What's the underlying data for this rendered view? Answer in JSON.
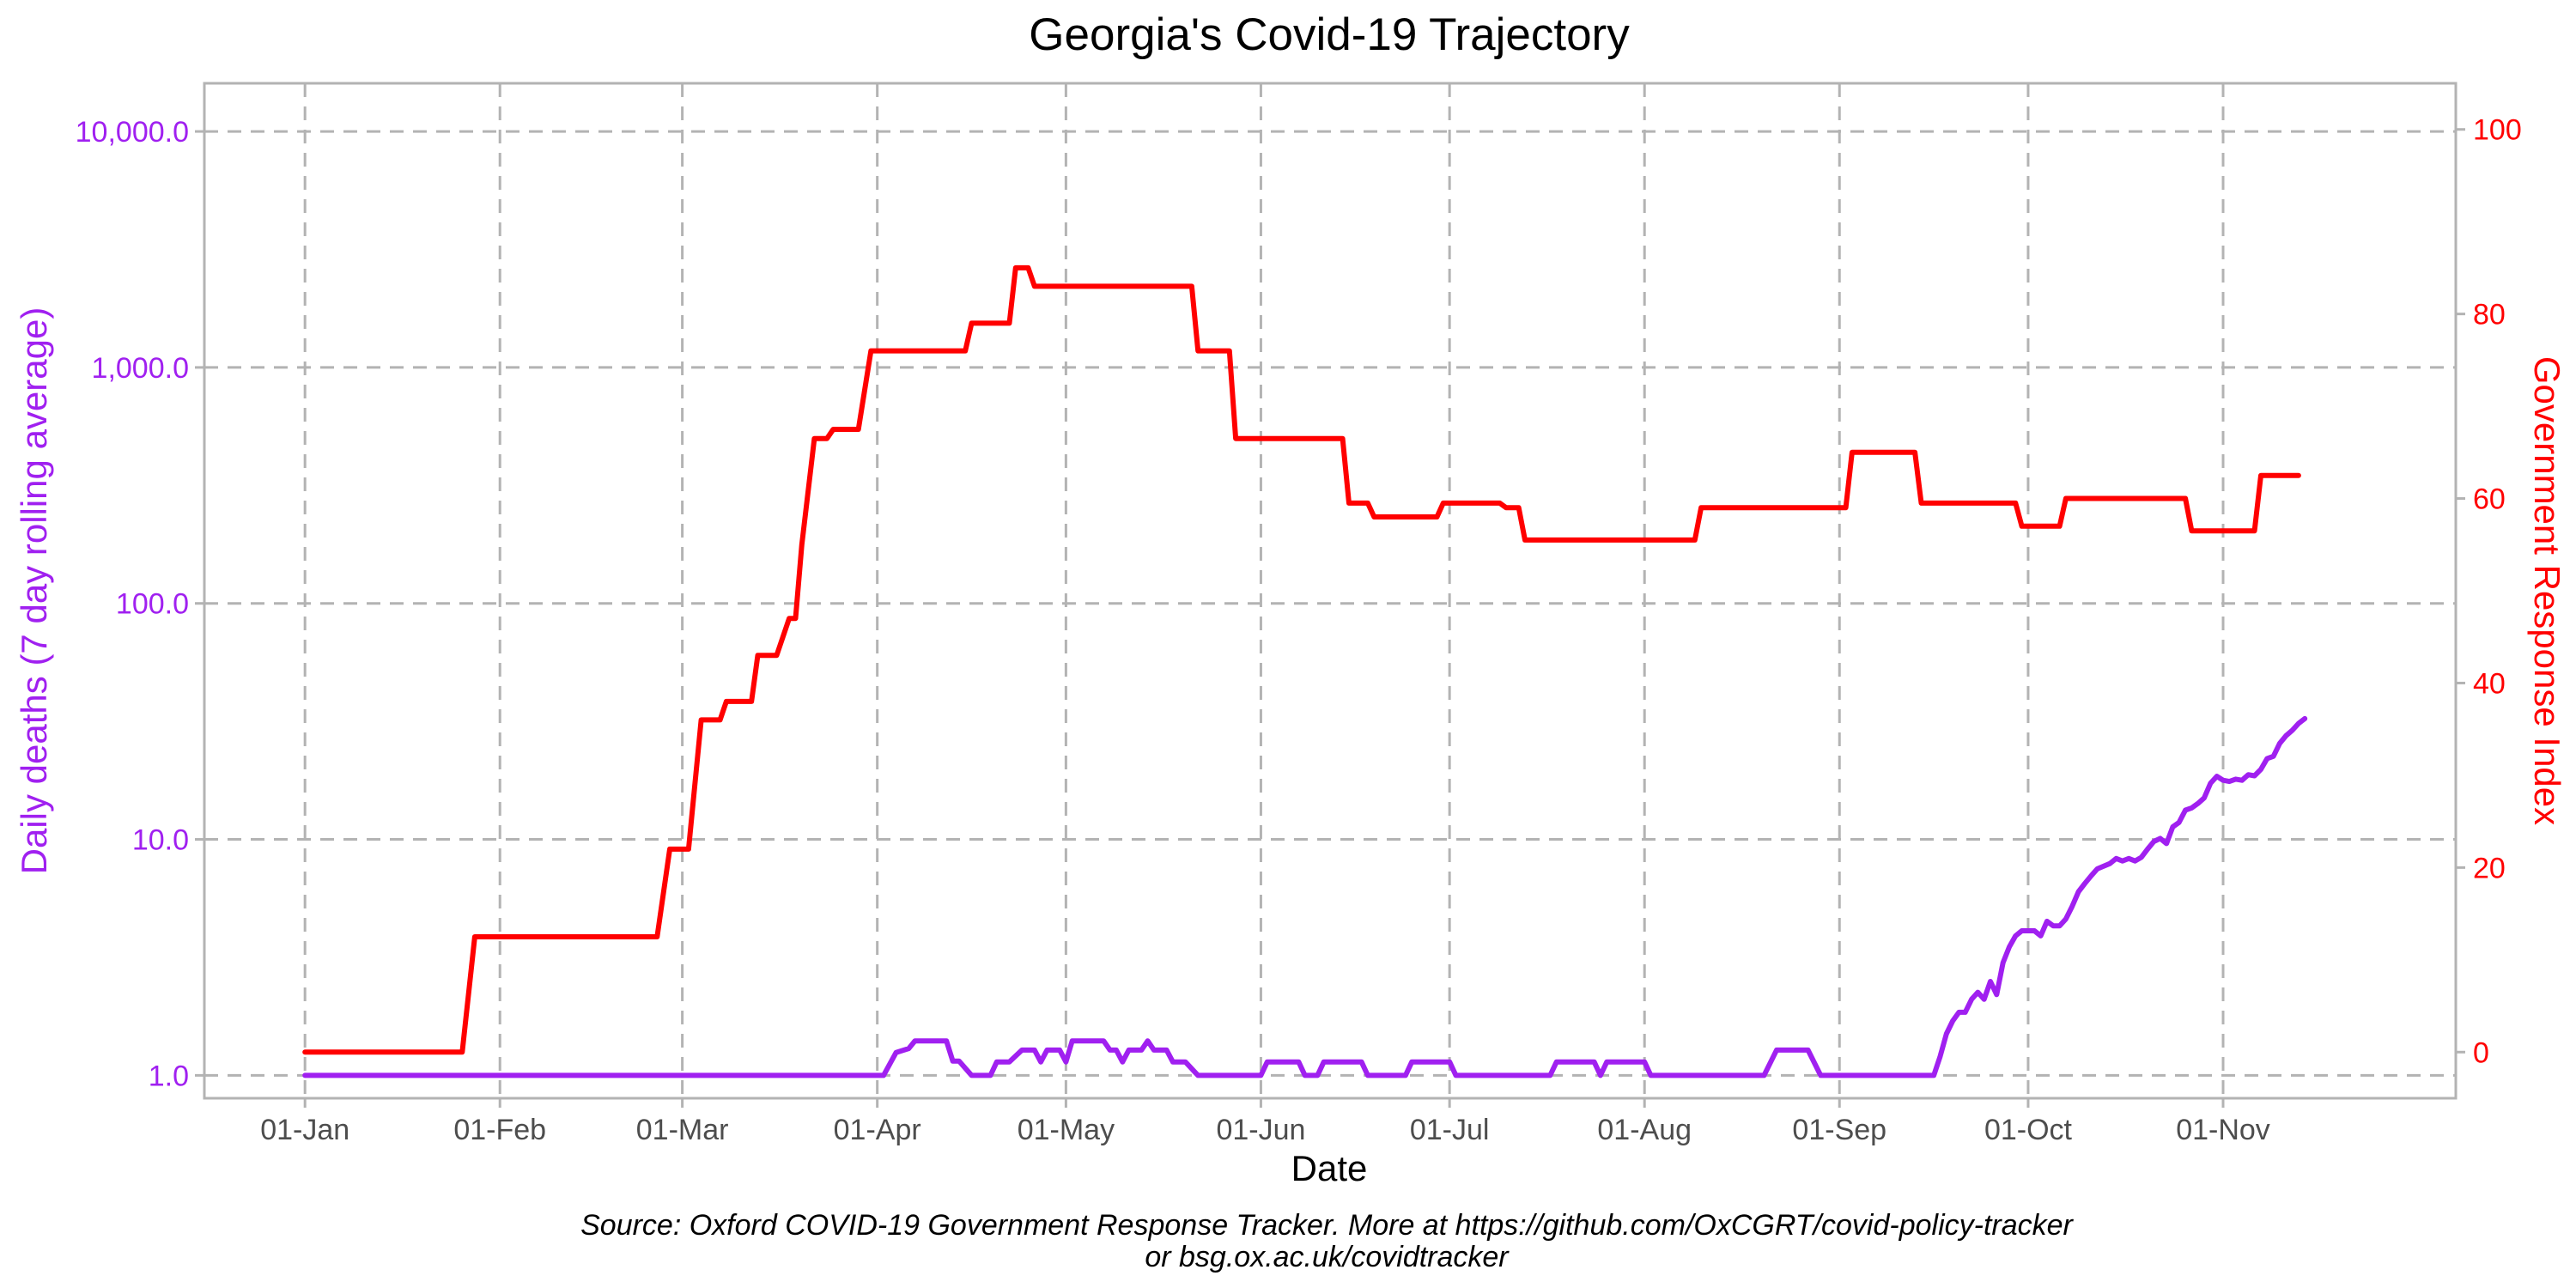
{
  "chart_data": {
    "type": "line",
    "title": "Georgia's Covid-19 Trajectory",
    "xlabel": "Date",
    "ylabel_left": "Daily deaths (7 day rolling average)",
    "ylabel_right": "Government Response Index",
    "caption_line1": "Source: Oxford COVID-19 Government Response Tracker. More at https://github.com/OxCGRT/covid-policy-tracker",
    "caption_line2": "or bsg.ox.ac.uk/covidtracker",
    "x_ticks": [
      {
        "label": "01-Jan",
        "date": "2020-01-01"
      },
      {
        "label": "01-Feb",
        "date": "2020-02-01"
      },
      {
        "label": "01-Mar",
        "date": "2020-03-01"
      },
      {
        "label": "01-Apr",
        "date": "2020-04-01"
      },
      {
        "label": "01-May",
        "date": "2020-05-01"
      },
      {
        "label": "01-Jun",
        "date": "2020-06-01"
      },
      {
        "label": "01-Jul",
        "date": "2020-07-01"
      },
      {
        "label": "01-Aug",
        "date": "2020-08-01"
      },
      {
        "label": "01-Sep",
        "date": "2020-09-01"
      },
      {
        "label": "01-Oct",
        "date": "2020-10-01"
      },
      {
        "label": "01-Nov",
        "date": "2020-11-01"
      }
    ],
    "xlim": [
      "2019-12-16",
      "2020-12-08"
    ],
    "y_left": {
      "scale": "log10",
      "ylim": [
        0.8,
        16000
      ],
      "ticks": [
        {
          "label": "1.0",
          "value": 1
        },
        {
          "label": "10.0",
          "value": 10
        },
        {
          "label": "100.0",
          "value": 100
        },
        {
          "label": "1,000.0",
          "value": 1000
        },
        {
          "label": "10,000.0",
          "value": 10000
        }
      ]
    },
    "y_right": {
      "scale": "linear",
      "ylim": [
        -5,
        105
      ],
      "ticks": [
        {
          "label": "0",
          "value": 0
        },
        {
          "label": "20",
          "value": 20
        },
        {
          "label": "40",
          "value": 40
        },
        {
          "label": "60",
          "value": 60
        },
        {
          "label": "80",
          "value": 80
        },
        {
          "label": "100",
          "value": 100
        }
      ]
    },
    "grid": true,
    "series": [
      {
        "name": "Daily deaths (7 day rolling average)",
        "axis": "left",
        "color": "#a020f0",
        "points": [
          [
            "2020-01-01",
            1.0
          ],
          [
            "2020-04-02",
            1.0
          ],
          [
            "2020-04-04",
            1.25
          ],
          [
            "2020-04-06",
            1.3
          ],
          [
            "2020-04-07",
            1.4
          ],
          [
            "2020-04-12",
            1.4
          ],
          [
            "2020-04-13",
            1.15
          ],
          [
            "2020-04-14",
            1.15
          ],
          [
            "2020-04-16",
            1.0
          ],
          [
            "2020-04-19",
            1.0
          ],
          [
            "2020-04-20",
            1.14
          ],
          [
            "2020-04-22",
            1.14
          ],
          [
            "2020-04-24",
            1.28
          ],
          [
            "2020-04-26",
            1.28
          ],
          [
            "2020-04-27",
            1.14
          ],
          [
            "2020-04-28",
            1.28
          ],
          [
            "2020-04-30",
            1.28
          ],
          [
            "2020-05-01",
            1.14
          ],
          [
            "2020-05-02",
            1.4
          ],
          [
            "2020-05-07",
            1.4
          ],
          [
            "2020-05-08",
            1.28
          ],
          [
            "2020-05-09",
            1.28
          ],
          [
            "2020-05-10",
            1.14
          ],
          [
            "2020-05-11",
            1.28
          ],
          [
            "2020-05-13",
            1.28
          ],
          [
            "2020-05-14",
            1.4
          ],
          [
            "2020-05-15",
            1.28
          ],
          [
            "2020-05-17",
            1.28
          ],
          [
            "2020-05-18",
            1.14
          ],
          [
            "2020-05-20",
            1.14
          ],
          [
            "2020-05-22",
            1.0
          ],
          [
            "2020-06-01",
            1.0
          ],
          [
            "2020-06-02",
            1.14
          ],
          [
            "2020-06-07",
            1.14
          ],
          [
            "2020-06-08",
            1.0
          ],
          [
            "2020-06-10",
            1.0
          ],
          [
            "2020-06-11",
            1.14
          ],
          [
            "2020-06-17",
            1.14
          ],
          [
            "2020-06-18",
            1.0
          ],
          [
            "2020-06-24",
            1.0
          ],
          [
            "2020-06-25",
            1.14
          ],
          [
            "2020-07-01",
            1.14
          ],
          [
            "2020-07-02",
            1.0
          ],
          [
            "2020-07-17",
            1.0
          ],
          [
            "2020-07-18",
            1.14
          ],
          [
            "2020-07-24",
            1.14
          ],
          [
            "2020-07-25",
            1.0
          ],
          [
            "2020-07-26",
            1.14
          ],
          [
            "2020-08-01",
            1.14
          ],
          [
            "2020-08-02",
            1.0
          ],
          [
            "2020-08-20",
            1.0
          ],
          [
            "2020-08-22",
            1.28
          ],
          [
            "2020-08-27",
            1.28
          ],
          [
            "2020-08-29",
            1.0
          ],
          [
            "2020-09-16",
            1.0
          ],
          [
            "2020-09-17",
            1.2
          ],
          [
            "2020-09-18",
            1.5
          ],
          [
            "2020-09-19",
            1.7
          ],
          [
            "2020-09-20",
            1.85
          ],
          [
            "2020-09-21",
            1.85
          ],
          [
            "2020-09-22",
            2.1
          ],
          [
            "2020-09-23",
            2.25
          ],
          [
            "2020-09-24",
            2.1
          ],
          [
            "2020-09-25",
            2.5
          ],
          [
            "2020-09-26",
            2.2
          ],
          [
            "2020-09-27",
            3.0
          ],
          [
            "2020-09-28",
            3.5
          ],
          [
            "2020-09-29",
            3.9
          ],
          [
            "2020-09-30",
            4.1
          ],
          [
            "2020-10-02",
            4.1
          ],
          [
            "2020-10-03",
            3.9
          ],
          [
            "2020-10-04",
            4.5
          ],
          [
            "2020-10-05",
            4.3
          ],
          [
            "2020-10-06",
            4.3
          ],
          [
            "2020-10-07",
            4.6
          ],
          [
            "2020-10-08",
            5.2
          ],
          [
            "2020-10-09",
            6.0
          ],
          [
            "2020-10-10",
            6.5
          ],
          [
            "2020-10-11",
            7.0
          ],
          [
            "2020-10-12",
            7.5
          ],
          [
            "2020-10-13",
            7.7
          ],
          [
            "2020-10-14",
            7.9
          ],
          [
            "2020-10-15",
            8.3
          ],
          [
            "2020-10-16",
            8.1
          ],
          [
            "2020-10-17",
            8.3
          ],
          [
            "2020-10-18",
            8.1
          ],
          [
            "2020-10-19",
            8.4
          ],
          [
            "2020-10-20",
            9.1
          ],
          [
            "2020-10-21",
            9.8
          ],
          [
            "2020-10-22",
            10.1
          ],
          [
            "2020-10-23",
            9.6
          ],
          [
            "2020-10-24",
            11.3
          ],
          [
            "2020-10-25",
            11.8
          ],
          [
            "2020-10-26",
            13.3
          ],
          [
            "2020-10-27",
            13.6
          ],
          [
            "2020-10-28",
            14.2
          ],
          [
            "2020-10-29",
            15.0
          ],
          [
            "2020-10-30",
            17.3
          ],
          [
            "2020-10-31",
            18.5
          ],
          [
            "2020-11-01",
            17.8
          ],
          [
            "2020-11-02",
            17.6
          ],
          [
            "2020-11-03",
            18.0
          ],
          [
            "2020-11-04",
            17.8
          ],
          [
            "2020-11-05",
            18.8
          ],
          [
            "2020-11-06",
            18.6
          ],
          [
            "2020-11-07",
            19.8
          ],
          [
            "2020-11-08",
            22.0
          ],
          [
            "2020-11-09",
            22.5
          ],
          [
            "2020-11-10",
            25.5
          ],
          [
            "2020-11-11",
            27.5
          ],
          [
            "2020-11-12",
            29.0
          ],
          [
            "2020-11-13",
            31.0
          ],
          [
            "2020-11-14",
            32.5
          ]
        ]
      },
      {
        "name": "Government Response Index",
        "axis": "right",
        "color": "#ff0000",
        "points": [
          [
            "2020-01-01",
            0
          ],
          [
            "2020-01-26",
            0
          ],
          [
            "2020-01-28",
            12.5
          ],
          [
            "2020-02-26",
            12.5
          ],
          [
            "2020-02-28",
            22
          ],
          [
            "2020-03-02",
            22
          ],
          [
            "2020-03-04",
            36
          ],
          [
            "2020-03-07",
            36
          ],
          [
            "2020-03-08",
            38
          ],
          [
            "2020-03-12",
            38
          ],
          [
            "2020-03-13",
            43
          ],
          [
            "2020-03-16",
            43
          ],
          [
            "2020-03-18",
            47
          ],
          [
            "2020-03-19",
            47
          ],
          [
            "2020-03-20",
            55
          ],
          [
            "2020-03-22",
            66.5
          ],
          [
            "2020-03-24",
            66.5
          ],
          [
            "2020-03-25",
            67.5
          ],
          [
            "2020-03-29",
            67.5
          ],
          [
            "2020-03-31",
            76
          ],
          [
            "2020-04-15",
            76
          ],
          [
            "2020-04-16",
            79
          ],
          [
            "2020-04-22",
            79
          ],
          [
            "2020-04-23",
            85
          ],
          [
            "2020-04-25",
            85
          ],
          [
            "2020-04-26",
            83
          ],
          [
            "2020-05-21",
            83
          ],
          [
            "2020-05-22",
            76
          ],
          [
            "2020-05-27",
            76
          ],
          [
            "2020-05-28",
            66.5
          ],
          [
            "2020-06-14",
            66.5
          ],
          [
            "2020-06-15",
            59.5
          ],
          [
            "2020-06-18",
            59.5
          ],
          [
            "2020-06-19",
            58
          ],
          [
            "2020-06-29",
            58
          ],
          [
            "2020-06-30",
            59.5
          ],
          [
            "2020-07-09",
            59.5
          ],
          [
            "2020-07-10",
            59
          ],
          [
            "2020-07-12",
            59
          ],
          [
            "2020-07-13",
            55.5
          ],
          [
            "2020-08-09",
            55.5
          ],
          [
            "2020-08-10",
            59
          ],
          [
            "2020-09-02",
            59
          ],
          [
            "2020-09-03",
            65
          ],
          [
            "2020-09-13",
            65
          ],
          [
            "2020-09-14",
            59.5
          ],
          [
            "2020-09-29",
            59.5
          ],
          [
            "2020-09-30",
            57
          ],
          [
            "2020-10-06",
            57
          ],
          [
            "2020-10-07",
            60
          ],
          [
            "2020-10-26",
            60
          ],
          [
            "2020-10-27",
            56.5
          ],
          [
            "2020-11-06",
            56.5
          ],
          [
            "2020-11-07",
            62.5
          ],
          [
            "2020-11-13",
            62.5
          ]
        ]
      }
    ]
  }
}
